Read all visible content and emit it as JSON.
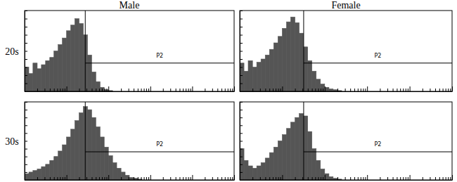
{
  "column_labels": [
    "Male",
    "Female"
  ],
  "row_labels": [
    "20s",
    "30s"
  ],
  "chart_data": [
    {
      "type": "histogram",
      "log": "x",
      "grid": false,
      "tick_labels": false,
      "color": "#555555",
      "xlim": [
        1,
        100000
      ],
      "ylim": [
        0,
        100
      ],
      "xticks": [
        1,
        2,
        3,
        4,
        5,
        6,
        7,
        8,
        9,
        10,
        20,
        30,
        40,
        50,
        60,
        70,
        80,
        90,
        100,
        200,
        300,
        400,
        500,
        600,
        700,
        800,
        900,
        1000,
        2000,
        3000,
        4000,
        5000,
        6000,
        7000,
        8000,
        9000,
        10000,
        20000,
        30000,
        40000,
        50000,
        60000,
        70000,
        80000,
        90000,
        100000
      ],
      "yticks": [
        0,
        10,
        20,
        30,
        40,
        50,
        60,
        70,
        80,
        90,
        100
      ],
      "bins": [
        1,
        1.26,
        1.58,
        2,
        2.51,
        3.16,
        3.98,
        5.01,
        6.31,
        7.94,
        10,
        12.6,
        15.8,
        20,
        25.1,
        31.6,
        39.8,
        50.1,
        63.1,
        79.4,
        100,
        126,
        158,
        200,
        251,
        316,
        398,
        501,
        631
      ],
      "counts": [
        30,
        22,
        35,
        28,
        33,
        38,
        42,
        50,
        58,
        66,
        75,
        82,
        90,
        84,
        70,
        45,
        24,
        12,
        5,
        2,
        1,
        0,
        0,
        0,
        0,
        0,
        0,
        0
      ],
      "gate": {
        "label": "P2",
        "x": [
          28,
          100000
        ],
        "y": 35
      }
    },
    {
      "type": "histogram",
      "log": "x",
      "grid": false,
      "tick_labels": false,
      "color": "#555555",
      "xlim": [
        1,
        100000
      ],
      "ylim": [
        0,
        100
      ],
      "xticks": [
        1,
        2,
        3,
        4,
        5,
        6,
        7,
        8,
        9,
        10,
        20,
        30,
        40,
        50,
        60,
        70,
        80,
        90,
        100,
        200,
        300,
        400,
        500,
        600,
        700,
        800,
        900,
        1000,
        2000,
        3000,
        4000,
        5000,
        6000,
        7000,
        8000,
        9000,
        10000,
        20000,
        30000,
        40000,
        50000,
        60000,
        70000,
        80000,
        90000,
        100000
      ],
      "yticks": [
        0,
        10,
        20,
        30,
        40,
        50,
        60,
        70,
        80,
        90,
        100
      ],
      "bins": [
        1,
        1.26,
        1.58,
        2,
        2.51,
        3.16,
        3.98,
        5.01,
        6.31,
        7.94,
        10,
        12.6,
        15.8,
        20,
        25.1,
        31.6,
        39.8,
        50.1,
        63.1,
        79.4,
        100,
        126,
        158,
        200,
        251,
        316,
        398,
        501,
        631
      ],
      "counts": [
        35,
        25,
        38,
        30,
        36,
        40,
        45,
        52,
        60,
        68,
        78,
        86,
        92,
        85,
        72,
        55,
        38,
        25,
        15,
        9,
        5,
        3,
        2,
        1,
        0,
        0,
        0,
        0
      ],
      "gate": {
        "label": "P2",
        "x": [
          32,
          100000
        ],
        "y": 35
      }
    },
    {
      "type": "histogram",
      "log": "x",
      "grid": false,
      "tick_labels": false,
      "color": "#555555",
      "xlim": [
        1,
        100000
      ],
      "ylim": [
        0,
        100
      ],
      "xticks": [
        1,
        2,
        3,
        4,
        5,
        6,
        7,
        8,
        9,
        10,
        20,
        30,
        40,
        50,
        60,
        70,
        80,
        90,
        100,
        200,
        300,
        400,
        500,
        600,
        700,
        800,
        900,
        1000,
        2000,
        3000,
        4000,
        5000,
        6000,
        7000,
        8000,
        9000,
        10000,
        20000,
        30000,
        40000,
        50000,
        60000,
        70000,
        80000,
        90000,
        100000
      ],
      "yticks": [
        0,
        10,
        20,
        30,
        40,
        50,
        60,
        70,
        80,
        90,
        100
      ],
      "bins": [
        1,
        1.26,
        1.58,
        2,
        2.51,
        3.16,
        3.98,
        5.01,
        6.31,
        7.94,
        10,
        12.6,
        15.8,
        20,
        25.1,
        31.6,
        39.8,
        50.1,
        63.1,
        79.4,
        100,
        126,
        158,
        200,
        251,
        316,
        398,
        501,
        631
      ],
      "counts": [
        8,
        10,
        12,
        14,
        17,
        20,
        25,
        30,
        37,
        45,
        55,
        65,
        76,
        86,
        94,
        90,
        80,
        68,
        55,
        42,
        31,
        22,
        15,
        10,
        6,
        3,
        2,
        1
      ],
      "gate": {
        "label": "P2",
        "x": [
          28,
          100000
        ],
        "y": 36
      }
    },
    {
      "type": "histogram",
      "log": "x",
      "grid": false,
      "tick_labels": false,
      "color": "#555555",
      "xlim": [
        1,
        100000
      ],
      "ylim": [
        0,
        100
      ],
      "xticks": [
        1,
        2,
        3,
        4,
        5,
        6,
        7,
        8,
        9,
        10,
        20,
        30,
        40,
        50,
        60,
        70,
        80,
        90,
        100,
        200,
        300,
        400,
        500,
        600,
        700,
        800,
        900,
        1000,
        2000,
        3000,
        4000,
        5000,
        6000,
        7000,
        8000,
        9000,
        10000,
        20000,
        30000,
        40000,
        50000,
        60000,
        70000,
        80000,
        90000,
        100000
      ],
      "yticks": [
        0,
        10,
        20,
        30,
        40,
        50,
        60,
        70,
        80,
        90,
        100
      ],
      "bins": [
        1,
        1.26,
        1.58,
        2,
        2.51,
        3.16,
        3.98,
        5.01,
        6.31,
        7.94,
        10,
        12.6,
        15.8,
        20,
        25.1,
        31.6,
        39.8,
        50.1,
        63.1,
        79.4,
        100,
        126,
        158,
        200,
        251,
        316,
        398,
        501,
        631
      ],
      "counts": [
        40,
        25,
        18,
        15,
        18,
        22,
        28,
        35,
        42,
        50,
        58,
        66,
        74,
        80,
        85,
        82,
        62,
        40,
        25,
        14,
        8,
        4,
        2,
        1,
        0,
        0,
        0,
        0
      ],
      "gate": {
        "label": "P2",
        "x": [
          32,
          100000
        ],
        "y": 36
      }
    }
  ]
}
